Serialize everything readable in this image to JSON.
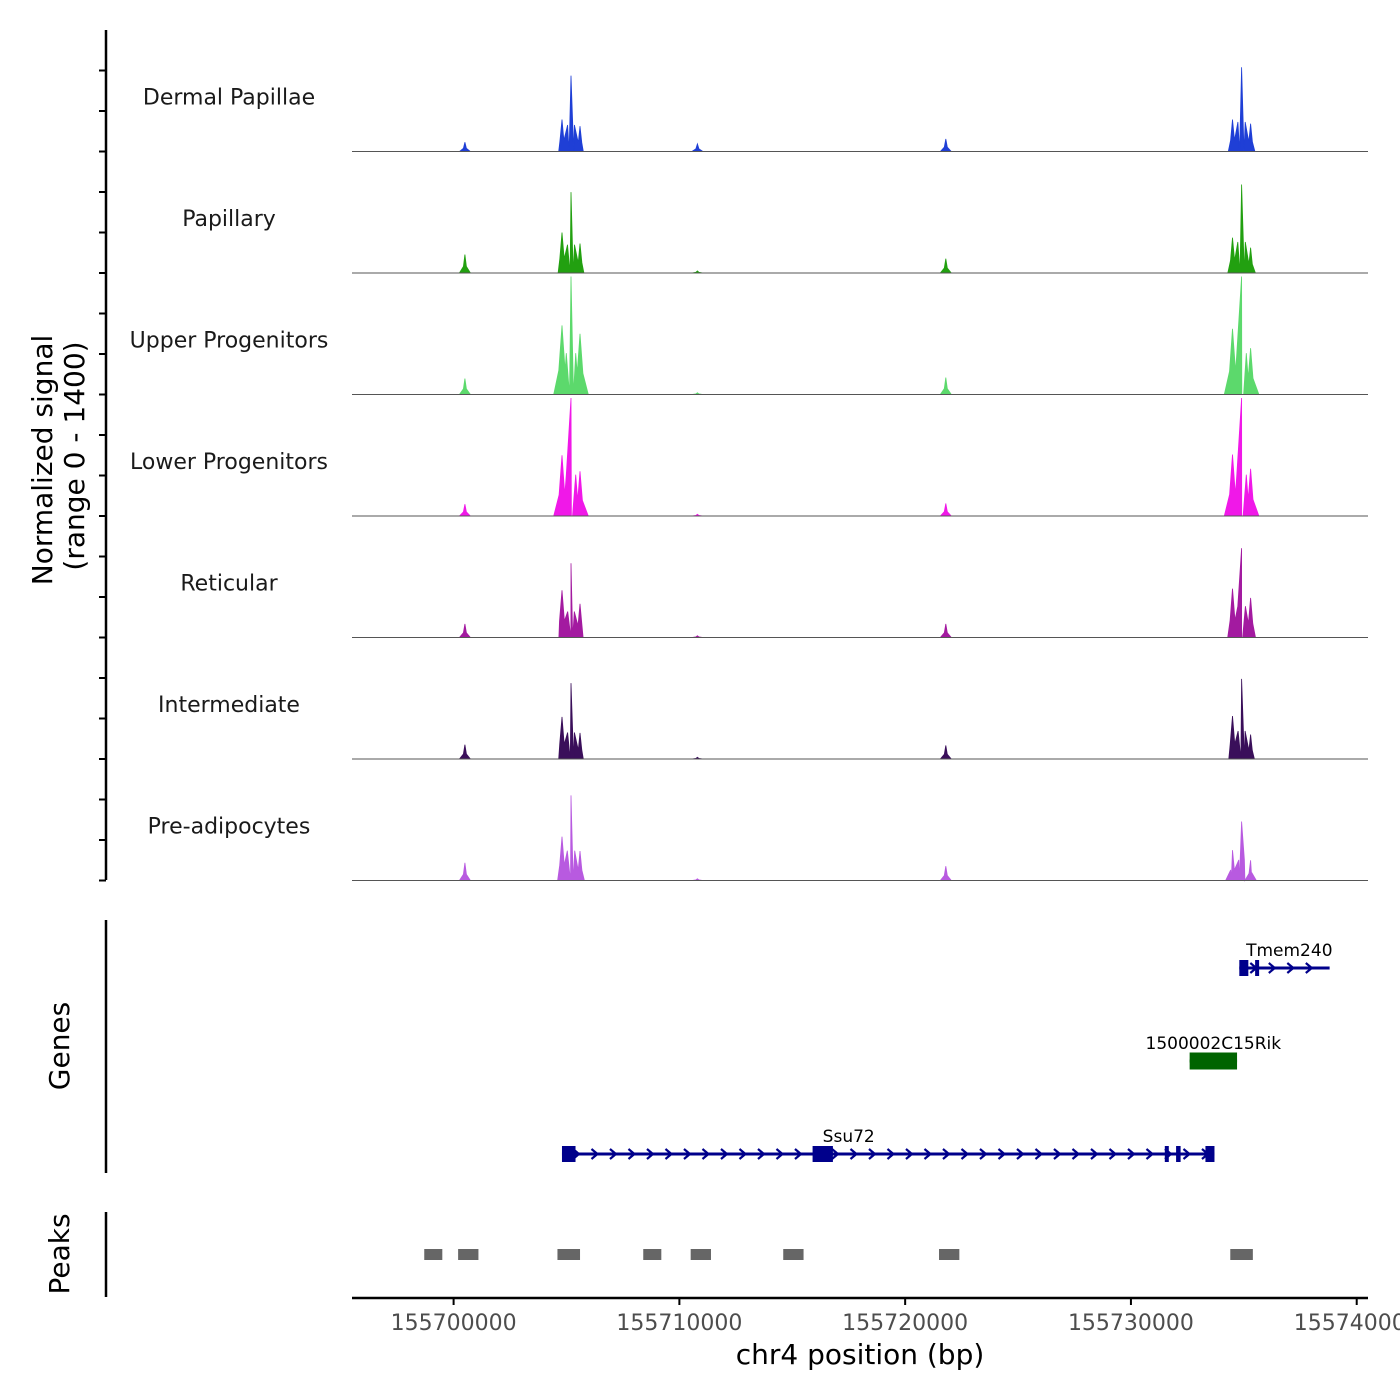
{
  "chart_data": {
    "type": "area",
    "title": "",
    "signal_axis_title": [
      "Normalized signal",
      "(range 0 - 1400)"
    ],
    "signal_range": [
      0,
      1400
    ],
    "genes_axis_title": "Genes",
    "peaks_axis_title": "Peaks",
    "xlabel": "chr4 position (bp)",
    "chromosome": "chr4",
    "xlim": [
      155695500,
      155740500
    ],
    "x_ticks": [
      155700000,
      155710000,
      155720000,
      155730000,
      155740000
    ],
    "x_tick_labels": [
      "155700000",
      "155710000",
      "155720000",
      "155730000",
      "155740000"
    ],
    "signal_peak_positions": [
      155700500,
      155704800,
      155705200,
      155705600,
      155710800,
      155721800,
      155734500,
      155734900,
      155735300
    ],
    "series": [
      {
        "name": "Dermal Papillae",
        "color": "#1f3fd6",
        "heights": [
          110,
          380,
          900,
          300,
          90,
          150,
          380,
          1000,
          330
        ]
      },
      {
        "name": "Papillary",
        "color": "#22a010",
        "heights": [
          220,
          480,
          960,
          350,
          25,
          170,
          420,
          1050,
          300
        ]
      },
      {
        "name": "Upper Progenitors",
        "color": "#5cd96c",
        "heights": [
          190,
          820,
          1400,
          720,
          20,
          200,
          780,
          1400,
          550
        ]
      },
      {
        "name": "Lower Progenitors",
        "color": "#f018e8",
        "heights": [
          140,
          720,
          1400,
          530,
          20,
          150,
          730,
          1400,
          560
        ]
      },
      {
        "name": "Reticular",
        "color": "#a31aa0",
        "heights": [
          160,
          560,
          880,
          400,
          20,
          160,
          580,
          1060,
          470
        ]
      },
      {
        "name": "Intermediate",
        "color": "#3a0f5a",
        "heights": [
          170,
          500,
          900,
          310,
          20,
          160,
          510,
          950,
          290
        ]
      },
      {
        "name": "Pre-adipocytes",
        "color": "#b85ae0",
        "heights": [
          210,
          520,
          1010,
          350,
          20,
          170,
          360,
          700,
          240
        ]
      }
    ],
    "genes": [
      {
        "name": "Tmem240",
        "start": 155734800,
        "end": 155738800,
        "strand": "+",
        "color": "#00008b",
        "row": 1,
        "exons": [
          [
            155734800,
            155735200
          ],
          [
            155735500,
            155735600
          ]
        ]
      },
      {
        "name": "1500002C15Rik",
        "start": 155732600,
        "end": 155734700,
        "strand": "+",
        "color": "#006400",
        "row": 2,
        "exons": [
          [
            155732600,
            155734700
          ]
        ]
      },
      {
        "name": "Ssu72",
        "start": 155704800,
        "end": 155733700,
        "strand": "+",
        "color": "#00008b",
        "row": 3,
        "exons": [
          [
            155704800,
            155705400
          ],
          [
            155715900,
            155716800
          ],
          [
            155731500,
            155731600
          ],
          [
            155732000,
            155732200
          ],
          [
            155733300,
            155733700
          ]
        ]
      }
    ],
    "peaks": [
      [
        155698700,
        155699500
      ],
      [
        155700200,
        155701100
      ],
      [
        155704600,
        155705600
      ],
      [
        155708400,
        155709200
      ],
      [
        155710500,
        155711400
      ],
      [
        155714600,
        155715500
      ],
      [
        155721500,
        155722400
      ],
      [
        155734400,
        155735400
      ]
    ]
  }
}
